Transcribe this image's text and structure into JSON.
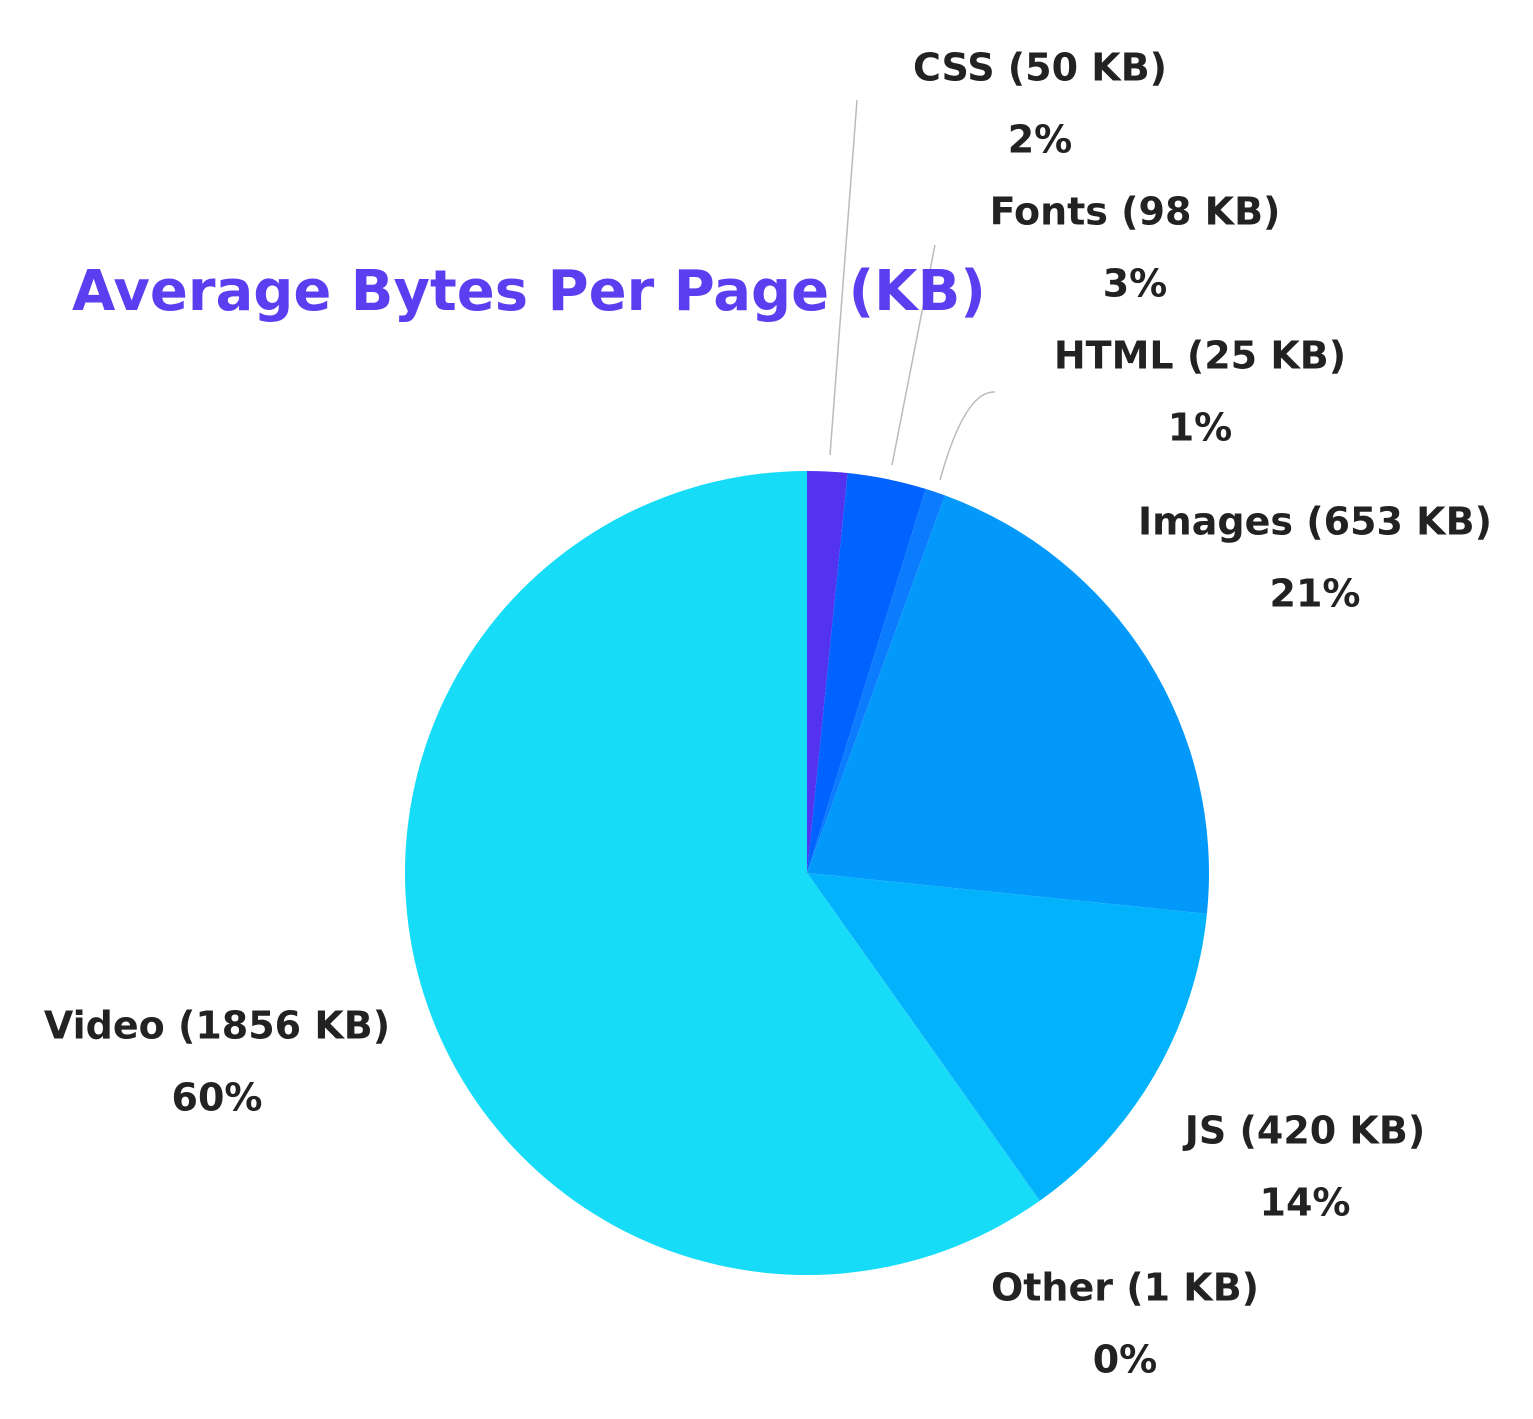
{
  "chart_data": {
    "type": "pie",
    "title": "Average Bytes Per Page (KB)",
    "categories": [
      "CSS (50 KB)",
      "Fonts (98 KB)",
      "HTML (25 KB)",
      "Images (653 KB)",
      "JS (420 KB)",
      "Other (1 KB)",
      "Video (1856 KB)"
    ],
    "values": [
      50,
      98,
      25,
      653,
      420,
      1,
      1856
    ],
    "value_labels": [
      "2%",
      "3%",
      "1%",
      "21%",
      "14%",
      "0%",
      "60%"
    ],
    "colors": [
      "#5433f0",
      "#0062ff",
      "#0a7cfd",
      "#0399fb",
      "#02b3fb",
      "#03b8fb",
      "#17dcf7"
    ],
    "title_color": "#5b3ef0"
  }
}
